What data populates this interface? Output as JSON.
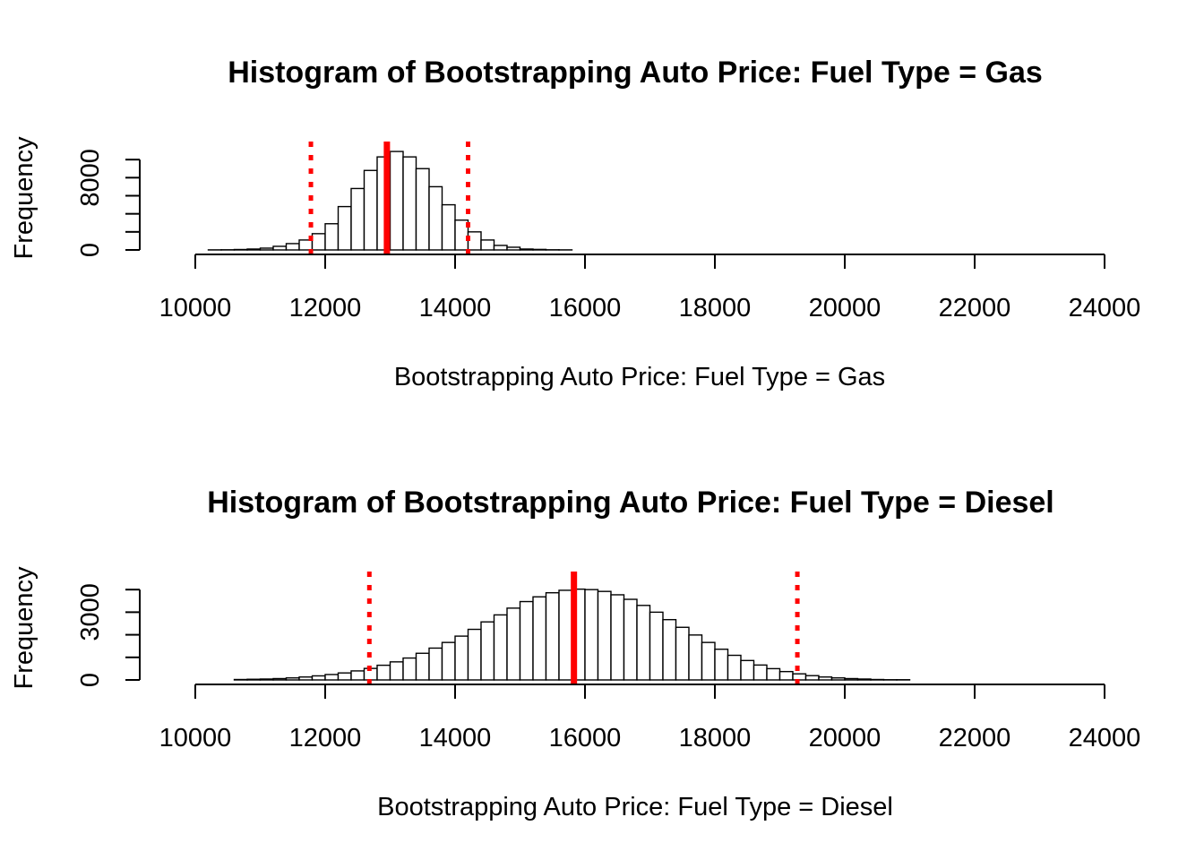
{
  "chart_data": [
    {
      "type": "bar",
      "title": "Histogram of   Bootstrapping Auto Price: Fuel Type = Gas",
      "xlabel": "Bootstrapping Auto Price: Fuel Type = Gas",
      "ylabel": "Frequency",
      "xlim": [
        10000,
        24000
      ],
      "ylim": [
        0,
        12000
      ],
      "x_ticks": [
        "10000",
        "12000",
        "14000",
        "16000",
        "18000",
        "20000",
        "22000",
        "24000"
      ],
      "y_ticks": [
        "0",
        "8000"
      ],
      "y_tick_values": [
        0,
        2000,
        4000,
        6000,
        8000,
        10000
      ],
      "bin_width": 200,
      "bins_start": [
        9800,
        10000,
        10200,
        10400,
        10600,
        10800,
        11000,
        11200,
        11400,
        11600,
        11800,
        12000,
        12200,
        12400,
        12600,
        12800,
        13000,
        13200,
        13400,
        13600,
        13800,
        14000,
        14200,
        14400,
        14600,
        14800,
        15000,
        15200,
        15400,
        15600,
        15800,
        16000,
        16200,
        16400,
        16600,
        16800,
        17000,
        17200,
        17400,
        17600,
        17800,
        18000,
        18200,
        18400,
        18600,
        18800,
        19000,
        19200,
        19400,
        19600,
        19800,
        20000,
        20200,
        20400,
        20600,
        20800,
        21000,
        21200,
        21400,
        21600,
        21800,
        22000,
        22200,
        22400,
        22600,
        22800,
        23000,
        23200,
        23400,
        23600
      ],
      "values": [
        0,
        0,
        10,
        20,
        50,
        100,
        200,
        400,
        700,
        1100,
        1800,
        2900,
        4800,
        6800,
        8800,
        10300,
        10900,
        10300,
        9000,
        7000,
        5000,
        3300,
        2000,
        1100,
        500,
        300,
        100,
        60,
        20,
        10,
        0,
        0,
        0,
        0,
        0,
        0,
        0,
        0,
        0,
        0,
        0,
        0,
        0,
        0,
        0,
        0,
        0,
        0,
        0,
        0,
        0,
        0,
        0,
        0,
        0,
        0,
        0,
        0,
        0,
        0,
        0,
        0,
        0,
        0,
        0,
        0,
        0,
        0,
        0,
        0
      ],
      "mean_line": 12950,
      "ci_lines": [
        11780,
        14200
      ],
      "line_color": "#ff0000"
    },
    {
      "type": "bar",
      "title": "Histogram of   Bootstrapping Auto Price: Fuel Type = Diesel",
      "xlabel": "Bootstrapping Auto Price: Fuel Type = Diesel",
      "ylabel": "Frequency",
      "xlim": [
        10000,
        24000
      ],
      "ylim": [
        0,
        4800
      ],
      "x_ticks": [
        "10000",
        "12000",
        "14000",
        "16000",
        "18000",
        "20000",
        "22000",
        "24000"
      ],
      "y_ticks": [
        "0",
        "3000"
      ],
      "y_tick_values": [
        0,
        1000,
        2000,
        3000,
        4000
      ],
      "bin_width": 200,
      "bins_start": [
        9800,
        10000,
        10200,
        10400,
        10600,
        10800,
        11000,
        11200,
        11400,
        11600,
        11800,
        12000,
        12200,
        12400,
        12600,
        12800,
        13000,
        13200,
        13400,
        13600,
        13800,
        14000,
        14200,
        14400,
        14600,
        14800,
        15000,
        15200,
        15400,
        15600,
        15800,
        16000,
        16200,
        16400,
        16600,
        16800,
        17000,
        17200,
        17400,
        17600,
        17800,
        18000,
        18200,
        18400,
        18600,
        18800,
        19000,
        19200,
        19400,
        19600,
        19800,
        20000,
        20200,
        20400,
        20600,
        20800,
        21000,
        21200,
        21400,
        21600,
        21800,
        22000,
        22200,
        22400,
        22600,
        22800,
        23000,
        23200,
        23400,
        23600
      ],
      "values": [
        0,
        0,
        0,
        0,
        20,
        30,
        40,
        60,
        90,
        130,
        180,
        240,
        310,
        400,
        510,
        650,
        800,
        970,
        1180,
        1410,
        1660,
        1940,
        2240,
        2570,
        2880,
        3180,
        3470,
        3680,
        3860,
        3970,
        4020,
        4000,
        3920,
        3770,
        3570,
        3300,
        3000,
        2670,
        2330,
        1990,
        1660,
        1360,
        1090,
        860,
        660,
        500,
        370,
        270,
        190,
        130,
        90,
        60,
        40,
        20,
        10,
        10,
        0,
        0,
        0,
        0,
        0,
        0,
        0,
        0,
        0,
        0,
        0,
        0,
        0,
        0
      ],
      "mean_line": 15830,
      "ci_lines": [
        12680,
        19270
      ],
      "line_color": "#ff0000"
    }
  ]
}
